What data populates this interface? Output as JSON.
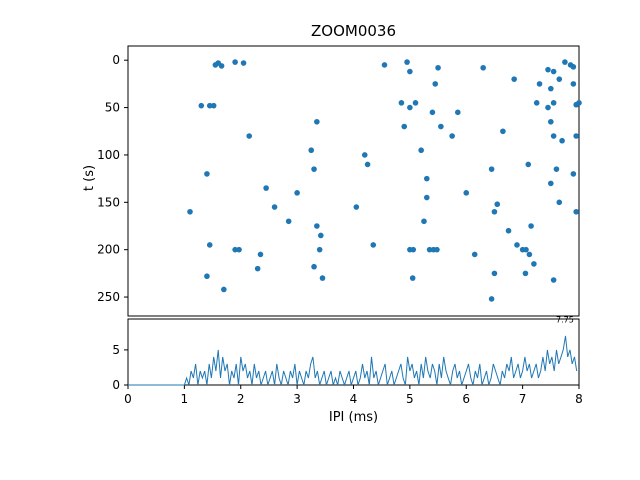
{
  "figure": {
    "title": "ZOOM0036",
    "background": "#ffffff",
    "accent_color": "#1f77b4"
  },
  "chart_data": [
    {
      "type": "scatter",
      "name": "ipi-vs-time-scatter",
      "title": "",
      "xlabel": "",
      "ylabel": "t (s)",
      "xlim": [
        0,
        8
      ],
      "ylim": [
        270,
        -15
      ],
      "y_inverted": true,
      "grid": false,
      "legend": "none",
      "xticks": [
        0,
        1,
        2,
        3,
        4,
        5,
        6,
        7,
        8
      ],
      "yticks": [
        0,
        50,
        100,
        150,
        200,
        250
      ],
      "marker_color": "#1f77b4",
      "points": [
        [
          1.55,
          5
        ],
        [
          1.6,
          3
        ],
        [
          1.66,
          6
        ],
        [
          1.9,
          2
        ],
        [
          2.05,
          3
        ],
        [
          4.55,
          5
        ],
        [
          4.95,
          2
        ],
        [
          5.0,
          12
        ],
        [
          5.5,
          8
        ],
        [
          6.3,
          8
        ],
        [
          7.45,
          10
        ],
        [
          7.55,
          12
        ],
        [
          7.75,
          2
        ],
        [
          7.85,
          5
        ],
        [
          7.9,
          7
        ],
        [
          5.45,
          25
        ],
        [
          6.85,
          20
        ],
        [
          7.3,
          25
        ],
        [
          7.5,
          30
        ],
        [
          7.65,
          20
        ],
        [
          7.9,
          25
        ],
        [
          1.3,
          48
        ],
        [
          1.45,
          48
        ],
        [
          1.52,
          48
        ],
        [
          4.85,
          45
        ],
        [
          5.0,
          50
        ],
        [
          5.1,
          45
        ],
        [
          5.4,
          55
        ],
        [
          5.85,
          55
        ],
        [
          7.25,
          45
        ],
        [
          7.45,
          50
        ],
        [
          7.55,
          45
        ],
        [
          7.95,
          47
        ],
        [
          8.0,
          45
        ],
        [
          3.35,
          65
        ],
        [
          4.9,
          70
        ],
        [
          5.55,
          70
        ],
        [
          5.75,
          80
        ],
        [
          6.65,
          75
        ],
        [
          7.5,
          65
        ],
        [
          7.55,
          80
        ],
        [
          7.95,
          80
        ],
        [
          7.7,
          85
        ],
        [
          2.15,
          80
        ],
        [
          3.25,
          95
        ],
        [
          4.2,
          100
        ],
        [
          5.2,
          95
        ],
        [
          1.4,
          120
        ],
        [
          3.3,
          115
        ],
        [
          4.25,
          110
        ],
        [
          5.3,
          125
        ],
        [
          6.45,
          115
        ],
        [
          7.1,
          110
        ],
        [
          7.6,
          115
        ],
        [
          7.9,
          120
        ],
        [
          7.5,
          130
        ],
        [
          1.1,
          160
        ],
        [
          2.45,
          135
        ],
        [
          3.0,
          140
        ],
        [
          2.6,
          155
        ],
        [
          4.05,
          155
        ],
        [
          5.3,
          145
        ],
        [
          6.0,
          140
        ],
        [
          6.5,
          160
        ],
        [
          6.55,
          152
        ],
        [
          7.65,
          150
        ],
        [
          7.95,
          160
        ],
        [
          2.85,
          170
        ],
        [
          3.35,
          175
        ],
        [
          3.42,
          185
        ],
        [
          5.25,
          170
        ],
        [
          6.75,
          180
        ],
        [
          7.15,
          175
        ],
        [
          1.45,
          195
        ],
        [
          1.9,
          200
        ],
        [
          1.97,
          200
        ],
        [
          2.35,
          205
        ],
        [
          3.4,
          200
        ],
        [
          4.35,
          195
        ],
        [
          5.0,
          200
        ],
        [
          5.06,
          200
        ],
        [
          5.35,
          200
        ],
        [
          5.42,
          200
        ],
        [
          5.48,
          200
        ],
        [
          6.15,
          205
        ],
        [
          6.9,
          195
        ],
        [
          7.0,
          200
        ],
        [
          7.06,
          200
        ],
        [
          7.12,
          205
        ],
        [
          1.4,
          228
        ],
        [
          1.7,
          242
        ],
        [
          2.3,
          220
        ],
        [
          3.3,
          218
        ],
        [
          3.45,
          230
        ],
        [
          5.05,
          230
        ],
        [
          6.5,
          225
        ],
        [
          7.05,
          225
        ],
        [
          7.2,
          215
        ],
        [
          7.55,
          232
        ],
        [
          6.45,
          252
        ]
      ]
    },
    {
      "type": "line",
      "name": "ipi-count-profile",
      "title": "",
      "xlabel": "IPI (ms)",
      "ylabel": "",
      "xlim": [
        0,
        8
      ],
      "ylim": [
        0,
        9.4
      ],
      "grid": false,
      "legend": "none",
      "xticks": [
        0,
        1,
        2,
        3,
        4,
        5,
        6,
        7,
        8
      ],
      "yticks": [
        0,
        5
      ],
      "line_color": "#1f77b4",
      "bin_width": 0.04,
      "counts": [
        0,
        0,
        0,
        0,
        0,
        0,
        0,
        0,
        0,
        0,
        0,
        0,
        0,
        0,
        0,
        0,
        0,
        0,
        0,
        0,
        0,
        0,
        0,
        0,
        0,
        0,
        1,
        0,
        2,
        1,
        3,
        0,
        2,
        1,
        2,
        0,
        3,
        1,
        4,
        2,
        5,
        1,
        4,
        2,
        3,
        0,
        2,
        1,
        3,
        0,
        4,
        2,
        3,
        1,
        2,
        0,
        3,
        1,
        2,
        0,
        1,
        2,
        0,
        1,
        2,
        0,
        3,
        1,
        0,
        2,
        1,
        0,
        2,
        1,
        3,
        0,
        2,
        1,
        0,
        2,
        1,
        3,
        4,
        1,
        2,
        0,
        1,
        2,
        0,
        1,
        2,
        0,
        1,
        0,
        2,
        1,
        0,
        1,
        2,
        0,
        1,
        2,
        0,
        1,
        3,
        1,
        2,
        0,
        4,
        1,
        2,
        0,
        1,
        2,
        3,
        0,
        1,
        2,
        0,
        1,
        2,
        3,
        1,
        0,
        4,
        2,
        3,
        1,
        2,
        0,
        3,
        1,
        4,
        2,
        1,
        3,
        2,
        0,
        3,
        1,
        4,
        2,
        1,
        0,
        2,
        3,
        1,
        2,
        0,
        1,
        2,
        3,
        1,
        0,
        2,
        1,
        3,
        0,
        1,
        2,
        0,
        1,
        3,
        2,
        1,
        0,
        2,
        1,
        3,
        2,
        4,
        1,
        2,
        3,
        1,
        2,
        4,
        2,
        3,
        1,
        2,
        3,
        1,
        2,
        4,
        2,
        5,
        3,
        4,
        2,
        5,
        3,
        4,
        5,
        7,
        4,
        5,
        3,
        4,
        2
      ],
      "annotation": {
        "text": "7.75",
        "x": 7.75,
        "y": 8.9
      }
    }
  ]
}
